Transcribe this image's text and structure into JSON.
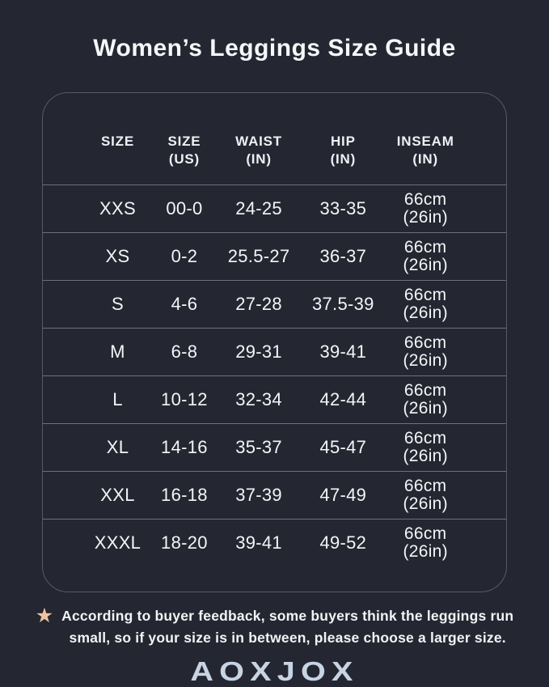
{
  "page": {
    "title": "Women’s Leggings Size Guide",
    "background_color": "#242731",
    "text_color": "#f4f5f7",
    "border_color": "#565a64",
    "star_color": "#efc3a0",
    "logo_color": "#c8d3e4"
  },
  "icons": {
    "star": "★"
  },
  "table": {
    "headers": [
      {
        "line1": "SIZE",
        "line2": ""
      },
      {
        "line1": "SIZE",
        "line2": "(US)"
      },
      {
        "line1": "WAIST",
        "line2": "(IN)"
      },
      {
        "line1": "HIP",
        "line2": "(IN)"
      },
      {
        "line1": "INSEAM",
        "line2": "(IN)"
      }
    ],
    "rows": [
      {
        "size": "XXS",
        "size_us": "00-0",
        "waist": "24-25",
        "hip": "33-35",
        "inseam_cm": "66cm",
        "inseam_in": "(26in)"
      },
      {
        "size": "XS",
        "size_us": "0-2",
        "waist": "25.5-27",
        "hip": "36-37",
        "inseam_cm": "66cm",
        "inseam_in": "(26in)"
      },
      {
        "size": "S",
        "size_us": "4-6",
        "waist": "27-28",
        "hip": "37.5-39",
        "inseam_cm": "66cm",
        "inseam_in": "(26in)"
      },
      {
        "size": "M",
        "size_us": "6-8",
        "waist": "29-31",
        "hip": "39-41",
        "inseam_cm": "66cm",
        "inseam_in": "(26in)"
      },
      {
        "size": "L",
        "size_us": "10-12",
        "waist": "32-34",
        "hip": "42-44",
        "inseam_cm": "66cm",
        "inseam_in": "(26in)"
      },
      {
        "size": "XL",
        "size_us": "14-16",
        "waist": "35-37",
        "hip": "45-47",
        "inseam_cm": "66cm",
        "inseam_in": "(26in)"
      },
      {
        "size": "XXL",
        "size_us": "16-18",
        "waist": "37-39",
        "hip": "47-49",
        "inseam_cm": "66cm",
        "inseam_in": "(26in)"
      },
      {
        "size": "XXXL",
        "size_us": "18-20",
        "waist": "39-41",
        "hip": "49-52",
        "inseam_cm": "66cm",
        "inseam_in": "(26in)"
      }
    ]
  },
  "note": {
    "line1": "According to buyer feedback, some buyers think the leggings run",
    "line2": "small, so if your size is in between, please choose a larger size."
  },
  "brand": {
    "logo_text": "AOXJOX"
  }
}
